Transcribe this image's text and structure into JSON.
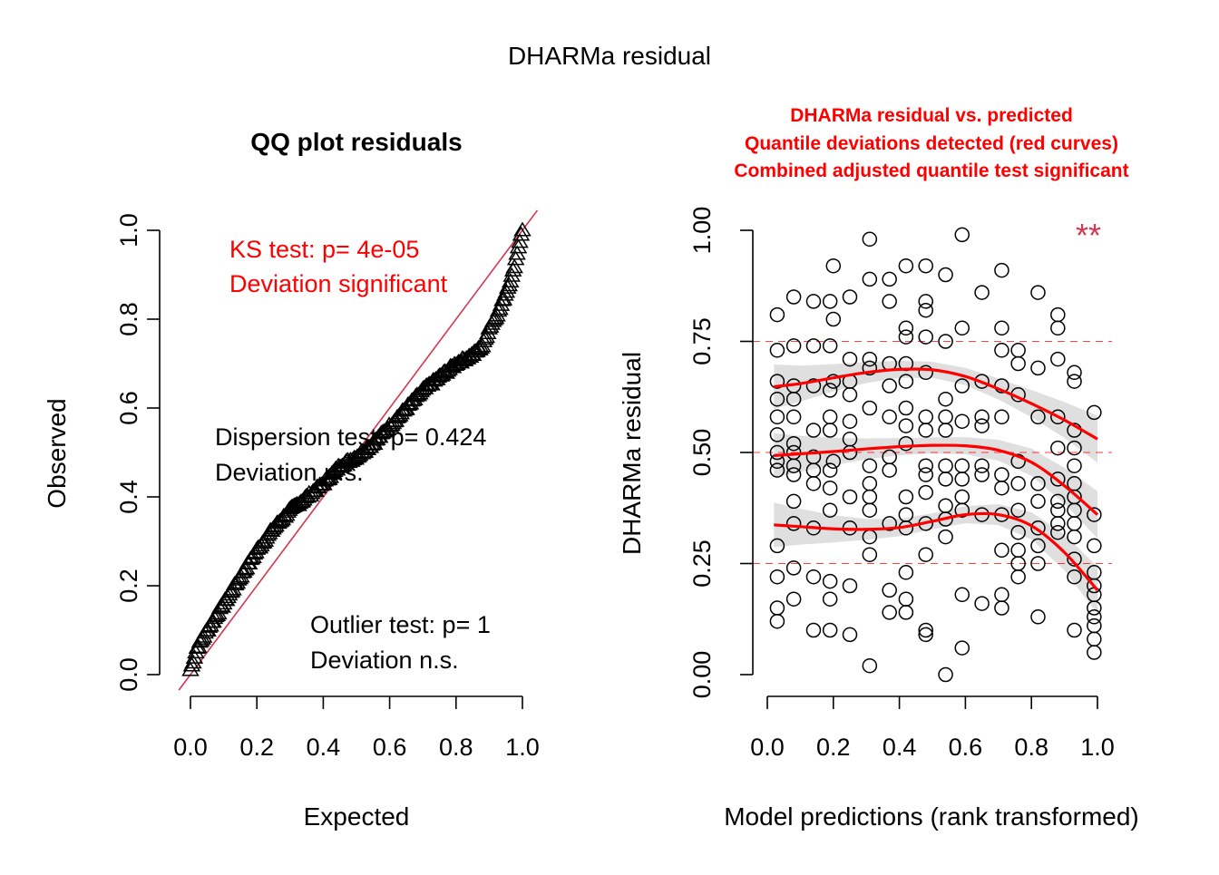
{
  "page": {
    "main_title": "DHARMa residual"
  },
  "colors": {
    "red": "#ff0000",
    "identity_line": "#d3374f",
    "band": "#d9d9d9",
    "black": "#000000"
  },
  "chart_data": [
    {
      "type": "scatter",
      "name": "qq",
      "title": "QQ plot residuals",
      "xlabel": "Expected",
      "ylabel": "Observed",
      "xlim": [
        0,
        1
      ],
      "ylim": [
        0,
        1
      ],
      "xticks": [
        "0.0",
        "0.2",
        "0.4",
        "0.6",
        "0.8",
        "1.0"
      ],
      "yticks": [
        "0.0",
        "0.2",
        "0.4",
        "0.6",
        "0.8",
        "1.0"
      ],
      "marker": "triangle",
      "reference_line": "y = x",
      "annotations": {
        "ks_line1": "KS test: p= 4e-05",
        "ks_line2": "Deviation  significant",
        "disp_line1": "Dispersion test: p= 0.424",
        "disp_line2": "Deviation  n.s.",
        "out_line1": "Outlier test: p= 1",
        "out_line2": "Deviation  n.s."
      },
      "curve_x": [
        0.0,
        0.02,
        0.05,
        0.1,
        0.15,
        0.2,
        0.25,
        0.3,
        0.35,
        0.4,
        0.45,
        0.5,
        0.55,
        0.6,
        0.65,
        0.7,
        0.75,
        0.8,
        0.85,
        0.88,
        0.9,
        0.93,
        0.95,
        0.97,
        0.99,
        1.0
      ],
      "curve_y": [
        0.01,
        0.06,
        0.1,
        0.16,
        0.22,
        0.28,
        0.33,
        0.37,
        0.4,
        0.43,
        0.47,
        0.49,
        0.52,
        0.56,
        0.6,
        0.64,
        0.67,
        0.7,
        0.72,
        0.74,
        0.78,
        0.82,
        0.86,
        0.9,
        0.97,
        1.0
      ]
    },
    {
      "type": "scatter",
      "name": "residual-vs-predicted",
      "title_lines": [
        "DHARMa residual vs. predicted",
        "Quantile deviations detected (red curves)",
        "Combined adjusted quantile test significant"
      ],
      "xlabel": "Model predictions (rank transformed)",
      "ylabel": "DHARMa residual",
      "xlim": [
        0,
        1
      ],
      "ylim": [
        0,
        1
      ],
      "xticks": [
        "0.0",
        "0.2",
        "0.4",
        "0.6",
        "0.8",
        "1.0"
      ],
      "yticks": [
        "0.00",
        "0.25",
        "0.50",
        "0.75",
        "1.00"
      ],
      "significance_mark": "**",
      "reference_lines_y": [
        0.25,
        0.5,
        0.75
      ],
      "points": [
        [
          0.03,
          0.81
        ],
        [
          0.03,
          0.73
        ],
        [
          0.03,
          0.66
        ],
        [
          0.03,
          0.62
        ],
        [
          0.03,
          0.58
        ],
        [
          0.03,
          0.54
        ],
        [
          0.03,
          0.5
        ],
        [
          0.03,
          0.48
        ],
        [
          0.03,
          0.46
        ],
        [
          0.03,
          0.29
        ],
        [
          0.03,
          0.22
        ],
        [
          0.03,
          0.15
        ],
        [
          0.03,
          0.12
        ],
        [
          0.08,
          0.85
        ],
        [
          0.08,
          0.74
        ],
        [
          0.08,
          0.65
        ],
        [
          0.08,
          0.62
        ],
        [
          0.08,
          0.58
        ],
        [
          0.08,
          0.52
        ],
        [
          0.08,
          0.5
        ],
        [
          0.08,
          0.47
        ],
        [
          0.08,
          0.45
        ],
        [
          0.08,
          0.39
        ],
        [
          0.08,
          0.34
        ],
        [
          0.08,
          0.24
        ],
        [
          0.08,
          0.17
        ],
        [
          0.14,
          0.84
        ],
        [
          0.14,
          0.74
        ],
        [
          0.14,
          0.65
        ],
        [
          0.14,
          0.55
        ],
        [
          0.14,
          0.49
        ],
        [
          0.14,
          0.46
        ],
        [
          0.14,
          0.43
        ],
        [
          0.14,
          0.33
        ],
        [
          0.14,
          0.22
        ],
        [
          0.14,
          0.1
        ],
        [
          0.19,
          0.84
        ],
        [
          0.19,
          0.74
        ],
        [
          0.19,
          0.64
        ],
        [
          0.19,
          0.58
        ],
        [
          0.19,
          0.55
        ],
        [
          0.19,
          0.46
        ],
        [
          0.19,
          0.42
        ],
        [
          0.19,
          0.37
        ],
        [
          0.19,
          0.21
        ],
        [
          0.19,
          0.17
        ],
        [
          0.19,
          0.1
        ],
        [
          0.2,
          0.92
        ],
        [
          0.2,
          0.8
        ],
        [
          0.2,
          0.66
        ],
        [
          0.2,
          0.48
        ],
        [
          0.25,
          0.85
        ],
        [
          0.25,
          0.71
        ],
        [
          0.25,
          0.66
        ],
        [
          0.25,
          0.63
        ],
        [
          0.25,
          0.57
        ],
        [
          0.25,
          0.53
        ],
        [
          0.25,
          0.5
        ],
        [
          0.25,
          0.4
        ],
        [
          0.25,
          0.33
        ],
        [
          0.25,
          0.2
        ],
        [
          0.25,
          0.09
        ],
        [
          0.31,
          0.98
        ],
        [
          0.31,
          0.89
        ],
        [
          0.31,
          0.71
        ],
        [
          0.31,
          0.69
        ],
        [
          0.31,
          0.6
        ],
        [
          0.31,
          0.47
        ],
        [
          0.31,
          0.43
        ],
        [
          0.31,
          0.4
        ],
        [
          0.31,
          0.37
        ],
        [
          0.31,
          0.31
        ],
        [
          0.31,
          0.27
        ],
        [
          0.31,
          0.02
        ],
        [
          0.37,
          0.89
        ],
        [
          0.37,
          0.84
        ],
        [
          0.37,
          0.7
        ],
        [
          0.37,
          0.65
        ],
        [
          0.37,
          0.58
        ],
        [
          0.37,
          0.49
        ],
        [
          0.37,
          0.46
        ],
        [
          0.37,
          0.34
        ],
        [
          0.37,
          0.19
        ],
        [
          0.37,
          0.14
        ],
        [
          0.42,
          0.92
        ],
        [
          0.42,
          0.78
        ],
        [
          0.42,
          0.76
        ],
        [
          0.42,
          0.7
        ],
        [
          0.42,
          0.66
        ],
        [
          0.42,
          0.6
        ],
        [
          0.42,
          0.56
        ],
        [
          0.42,
          0.52
        ],
        [
          0.42,
          0.4
        ],
        [
          0.42,
          0.36
        ],
        [
          0.42,
          0.33
        ],
        [
          0.42,
          0.23
        ],
        [
          0.42,
          0.17
        ],
        [
          0.42,
          0.14
        ],
        [
          0.48,
          0.92
        ],
        [
          0.48,
          0.84
        ],
        [
          0.48,
          0.82
        ],
        [
          0.48,
          0.76
        ],
        [
          0.48,
          0.68
        ],
        [
          0.48,
          0.58
        ],
        [
          0.48,
          0.55
        ],
        [
          0.48,
          0.47
        ],
        [
          0.48,
          0.45
        ],
        [
          0.48,
          0.41
        ],
        [
          0.48,
          0.34
        ],
        [
          0.48,
          0.27
        ],
        [
          0.48,
          0.1
        ],
        [
          0.48,
          0.09
        ],
        [
          0.54,
          0.9
        ],
        [
          0.54,
          0.75
        ],
        [
          0.54,
          0.62
        ],
        [
          0.54,
          0.58
        ],
        [
          0.54,
          0.55
        ],
        [
          0.54,
          0.47
        ],
        [
          0.54,
          0.44
        ],
        [
          0.54,
          0.38
        ],
        [
          0.54,
          0.35
        ],
        [
          0.54,
          0.31
        ],
        [
          0.54,
          0.0
        ],
        [
          0.59,
          0.99
        ],
        [
          0.59,
          0.78
        ],
        [
          0.59,
          0.65
        ],
        [
          0.59,
          0.57
        ],
        [
          0.59,
          0.47
        ],
        [
          0.59,
          0.44
        ],
        [
          0.59,
          0.4
        ],
        [
          0.59,
          0.37
        ],
        [
          0.59,
          0.18
        ],
        [
          0.59,
          0.06
        ],
        [
          0.65,
          0.86
        ],
        [
          0.65,
          0.66
        ],
        [
          0.65,
          0.58
        ],
        [
          0.65,
          0.56
        ],
        [
          0.65,
          0.47
        ],
        [
          0.65,
          0.45
        ],
        [
          0.65,
          0.36
        ],
        [
          0.65,
          0.16
        ],
        [
          0.71,
          0.91
        ],
        [
          0.71,
          0.78
        ],
        [
          0.71,
          0.73
        ],
        [
          0.71,
          0.65
        ],
        [
          0.71,
          0.58
        ],
        [
          0.71,
          0.45
        ],
        [
          0.71,
          0.42
        ],
        [
          0.71,
          0.36
        ],
        [
          0.71,
          0.28
        ],
        [
          0.71,
          0.18
        ],
        [
          0.71,
          0.15
        ],
        [
          0.76,
          0.73
        ],
        [
          0.76,
          0.7
        ],
        [
          0.76,
          0.63
        ],
        [
          0.76,
          0.48
        ],
        [
          0.76,
          0.43
        ],
        [
          0.76,
          0.37
        ],
        [
          0.76,
          0.32
        ],
        [
          0.76,
          0.28
        ],
        [
          0.76,
          0.25
        ],
        [
          0.76,
          0.22
        ],
        [
          0.82,
          0.86
        ],
        [
          0.82,
          0.69
        ],
        [
          0.82,
          0.58
        ],
        [
          0.82,
          0.43
        ],
        [
          0.82,
          0.39
        ],
        [
          0.82,
          0.33
        ],
        [
          0.82,
          0.29
        ],
        [
          0.82,
          0.25
        ],
        [
          0.82,
          0.13
        ],
        [
          0.88,
          0.81
        ],
        [
          0.88,
          0.78
        ],
        [
          0.88,
          0.71
        ],
        [
          0.88,
          0.58
        ],
        [
          0.88,
          0.51
        ],
        [
          0.88,
          0.44
        ],
        [
          0.88,
          0.39
        ],
        [
          0.88,
          0.37
        ],
        [
          0.88,
          0.34
        ],
        [
          0.88,
          0.32
        ],
        [
          0.93,
          0.68
        ],
        [
          0.93,
          0.66
        ],
        [
          0.93,
          0.55
        ],
        [
          0.93,
          0.51
        ],
        [
          0.93,
          0.47
        ],
        [
          0.93,
          0.43
        ],
        [
          0.93,
          0.4
        ],
        [
          0.93,
          0.37
        ],
        [
          0.93,
          0.34
        ],
        [
          0.93,
          0.31
        ],
        [
          0.93,
          0.26
        ],
        [
          0.93,
          0.22
        ],
        [
          0.93,
          0.1
        ],
        [
          0.99,
          0.59
        ],
        [
          0.99,
          0.36
        ],
        [
          0.99,
          0.29
        ],
        [
          0.99,
          0.23
        ],
        [
          0.99,
          0.2
        ],
        [
          0.99,
          0.18
        ],
        [
          0.99,
          0.15
        ],
        [
          0.99,
          0.13
        ],
        [
          0.99,
          0.11
        ],
        [
          0.99,
          0.08
        ],
        [
          0.99,
          0.05
        ]
      ],
      "quantile_curves": [
        {
          "quantile": 0.75,
          "x": [
            0.02,
            0.1,
            0.2,
            0.3,
            0.4,
            0.5,
            0.6,
            0.7,
            0.8,
            0.9,
            1.0
          ],
          "y": [
            0.648,
            0.655,
            0.668,
            0.68,
            0.687,
            0.686,
            0.671,
            0.643,
            0.61,
            0.573,
            0.53
          ]
        },
        {
          "quantile": 0.5,
          "x": [
            0.02,
            0.1,
            0.2,
            0.3,
            0.4,
            0.5,
            0.6,
            0.7,
            0.8,
            0.9,
            1.0
          ],
          "y": [
            0.493,
            0.497,
            0.502,
            0.508,
            0.513,
            0.516,
            0.515,
            0.505,
            0.478,
            0.425,
            0.36
          ]
        },
        {
          "quantile": 0.25,
          "x": [
            0.02,
            0.1,
            0.2,
            0.3,
            0.4,
            0.5,
            0.6,
            0.7,
            0.8,
            0.9,
            1.0
          ],
          "y": [
            0.337,
            0.333,
            0.328,
            0.327,
            0.331,
            0.345,
            0.36,
            0.36,
            0.335,
            0.275,
            0.19
          ]
        }
      ]
    }
  ]
}
